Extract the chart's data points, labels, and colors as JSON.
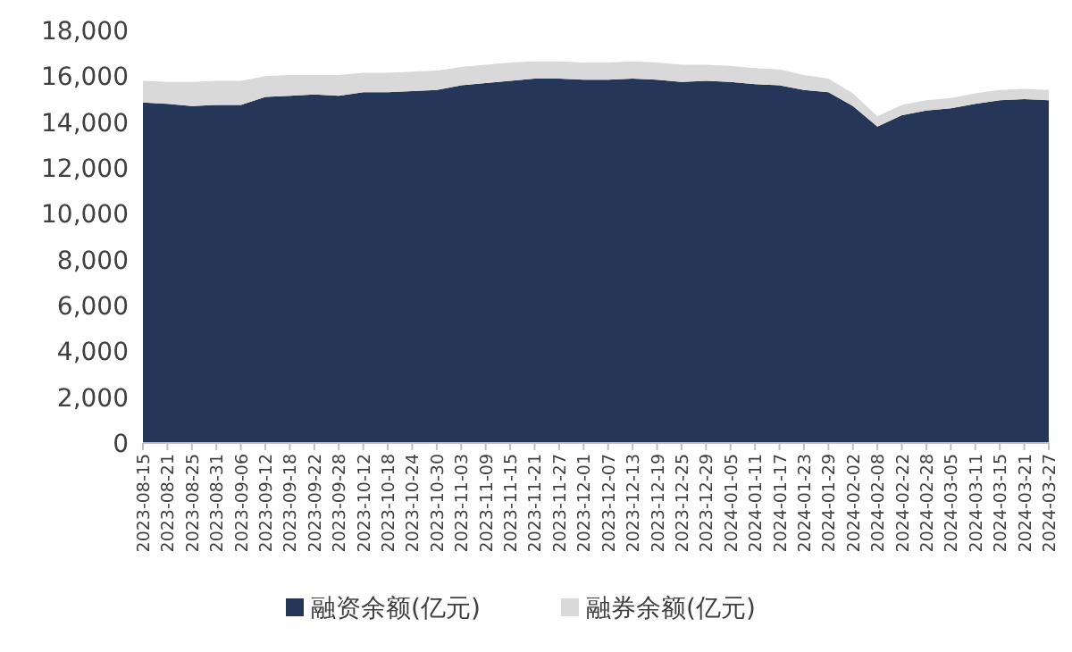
{
  "chart_data": {
    "type": "area",
    "stacked": true,
    "legend": "bottom",
    "grid": false,
    "categories": [
      "2023-08-15",
      "2023-08-21",
      "2023-08-25",
      "2023-08-31",
      "2023-09-06",
      "2023-09-12",
      "2023-09-18",
      "2023-09-22",
      "2023-09-28",
      "2023-10-12",
      "2023-10-18",
      "2023-10-24",
      "2023-10-30",
      "2023-11-03",
      "2023-11-09",
      "2023-11-15",
      "2023-11-21",
      "2023-11-27",
      "2023-12-01",
      "2023-12-07",
      "2023-12-13",
      "2023-12-19",
      "2023-12-25",
      "2023-12-29",
      "2024-01-05",
      "2024-01-11",
      "2024-01-17",
      "2024-01-23",
      "2024-01-29",
      "2024-02-02",
      "2024-02-08",
      "2024-02-22",
      "2024-02-28",
      "2024-03-05",
      "2024-03-11",
      "2024-03-15",
      "2024-03-21",
      "2024-03-27"
    ],
    "ylim": [
      0,
      18000
    ],
    "yticks": [
      {
        "value": 0,
        "label": "0"
      },
      {
        "value": 2000,
        "label": "2,000"
      },
      {
        "value": 4000,
        "label": "4,000"
      },
      {
        "value": 6000,
        "label": "6,000"
      },
      {
        "value": 8000,
        "label": "8,000"
      },
      {
        "value": 10000,
        "label": "10,000"
      },
      {
        "value": 12000,
        "label": "12,000"
      },
      {
        "value": 14000,
        "label": "14,000"
      },
      {
        "value": 16000,
        "label": "16,000"
      },
      {
        "value": 18000,
        "label": "18,000"
      }
    ],
    "series": [
      {
        "name": "融资余额(亿元)",
        "color": "#253658",
        "values": [
          14850,
          14800,
          14700,
          14750,
          14750,
          15100,
          15150,
          15200,
          15150,
          15300,
          15300,
          15350,
          15400,
          15600,
          15700,
          15800,
          15900,
          15900,
          15850,
          15850,
          15900,
          15850,
          15750,
          15800,
          15750,
          15650,
          15600,
          15400,
          15300,
          14700,
          13800,
          14300,
          14500,
          14600,
          14800,
          14950,
          15000,
          14950
        ]
      },
      {
        "name": "融券余额(亿元)",
        "color": "#d9d9d9",
        "values": [
          950,
          950,
          1050,
          1050,
          1050,
          900,
          900,
          850,
          900,
          850,
          850,
          850,
          850,
          800,
          800,
          800,
          750,
          750,
          750,
          750,
          750,
          750,
          750,
          700,
          700,
          700,
          700,
          650,
          600,
          550,
          450,
          450,
          450,
          450,
          450,
          450,
          450,
          450
        ]
      }
    ]
  }
}
